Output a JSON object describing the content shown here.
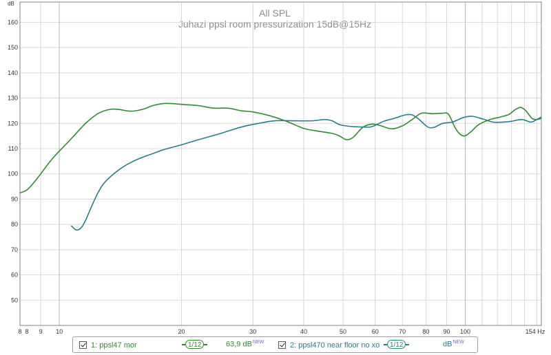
{
  "chart_data": {
    "type": "line",
    "title": "All SPL",
    "subtitle": "Juhazi ppsl room pressurization 15dB@15Hz",
    "ylabel": "dB",
    "xunit": "Hz",
    "xscale": "log",
    "xlim": [
      8,
      154
    ],
    "ylim": [
      40,
      168
    ],
    "yticks": [
      50,
      60,
      70,
      80,
      90,
      100,
      110,
      120,
      130,
      140,
      150,
      160
    ],
    "xticks": [
      8,
      9,
      10,
      20,
      30,
      40,
      50,
      60,
      70,
      80,
      90,
      100,
      154
    ],
    "xtick_labels": [
      "8",
      "9",
      "10",
      "20",
      "30",
      "40",
      "50",
      "60",
      "70",
      "80",
      "90",
      "100",
      "154 Hz"
    ],
    "grid": true,
    "series": [
      {
        "name": "1: ppsl47 mor",
        "color": "#2e8b2e",
        "points": [
          [
            8.0,
            92.5
          ],
          [
            8.3,
            93.5
          ],
          [
            8.6,
            96
          ],
          [
            9.0,
            100
          ],
          [
            9.5,
            105
          ],
          [
            10.0,
            109
          ],
          [
            10.5,
            112.5
          ],
          [
            11.0,
            116
          ],
          [
            11.7,
            120.5
          ],
          [
            12.5,
            124
          ],
          [
            13.3,
            125.5
          ],
          [
            14.0,
            125.5
          ],
          [
            15.0,
            124.8
          ],
          [
            16.0,
            125.5
          ],
          [
            17.0,
            127
          ],
          [
            18.0,
            127.8
          ],
          [
            19.0,
            127.8
          ],
          [
            20.0,
            127.5
          ],
          [
            22.0,
            127
          ],
          [
            24.0,
            126
          ],
          [
            26.0,
            126
          ],
          [
            28.0,
            125
          ],
          [
            30.0,
            124.5
          ],
          [
            33.0,
            123
          ],
          [
            36.0,
            121
          ],
          [
            40.0,
            118
          ],
          [
            43.0,
            117
          ],
          [
            47.0,
            116
          ],
          [
            49.0,
            115
          ],
          [
            51.0,
            113.5
          ],
          [
            53.0,
            114.5
          ],
          [
            56.0,
            118.5
          ],
          [
            59.0,
            119.7
          ],
          [
            62.0,
            119
          ],
          [
            66.0,
            117.8
          ],
          [
            70.0,
            119
          ],
          [
            74.0,
            121.5
          ],
          [
            78.0,
            124
          ],
          [
            83.0,
            123.8
          ],
          [
            88.0,
            124
          ],
          [
            91.0,
            123.5
          ],
          [
            95.0,
            117.5
          ],
          [
            99.0,
            115
          ],
          [
            103.0,
            116.5
          ],
          [
            108.0,
            119.5
          ],
          [
            115.0,
            121.5
          ],
          [
            122.0,
            122.5
          ],
          [
            128.0,
            123.5
          ],
          [
            133.0,
            125.5
          ],
          [
            137.0,
            126.3
          ],
          [
            141.0,
            125
          ],
          [
            146.0,
            122
          ],
          [
            150.0,
            121.5
          ],
          [
            154.0,
            122
          ]
        ]
      },
      {
        "name": "2: ppsl470 near floor no xo",
        "color": "#22808c",
        "points": [
          [
            10.7,
            79.5
          ],
          [
            11.0,
            77.8
          ],
          [
            11.3,
            78.5
          ],
          [
            11.6,
            81.5
          ],
          [
            12.0,
            87
          ],
          [
            12.5,
            93
          ],
          [
            13.0,
            97
          ],
          [
            14.0,
            101.5
          ],
          [
            15.0,
            104.5
          ],
          [
            16.0,
            106.5
          ],
          [
            17.0,
            108
          ],
          [
            18.0,
            109.5
          ],
          [
            20.0,
            111.5
          ],
          [
            22.0,
            113.5
          ],
          [
            25.0,
            116
          ],
          [
            28.0,
            118.5
          ],
          [
            31.0,
            120
          ],
          [
            34.0,
            121
          ],
          [
            38.0,
            121
          ],
          [
            42.0,
            121
          ],
          [
            45.0,
            121.5
          ],
          [
            47.0,
            121
          ],
          [
            49.0,
            119.5
          ],
          [
            52.0,
            118.8
          ],
          [
            55.0,
            118.6
          ],
          [
            58.0,
            118.5
          ],
          [
            60.0,
            119.2
          ],
          [
            63.0,
            120.8
          ],
          [
            67.0,
            122
          ],
          [
            71.0,
            123.3
          ],
          [
            74.0,
            123.3
          ],
          [
            77.0,
            121.5
          ],
          [
            81.0,
            118.5
          ],
          [
            84.0,
            118.5
          ],
          [
            88.0,
            120
          ],
          [
            93.0,
            120.5
          ],
          [
            99.0,
            122.3
          ],
          [
            104.0,
            122.8
          ],
          [
            110.0,
            121.8
          ],
          [
            117.0,
            120.5
          ],
          [
            124.0,
            120.5
          ],
          [
            130.0,
            120.8
          ],
          [
            138.0,
            121.5
          ],
          [
            145.0,
            120.5
          ],
          [
            150.0,
            121.5
          ],
          [
            154.0,
            122.5
          ]
        ]
      }
    ]
  },
  "legend": {
    "item1": {
      "label": "1: ppsl47 mor",
      "smoothing": "1/12",
      "level_value": "63,9 dB",
      "level_badge": "NEW"
    },
    "item2": {
      "label": "2: ppsl470 near floor no xo",
      "smoothing": "1/12",
      "level_value": "dB",
      "level_badge": "NEW"
    }
  }
}
